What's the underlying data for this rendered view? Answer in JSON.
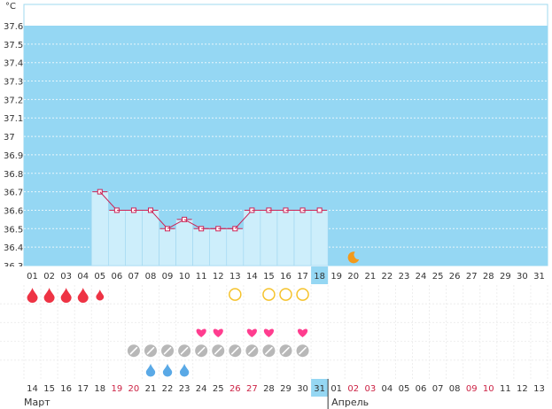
{
  "chart_data": {
    "type": "line",
    "ylabel": "°C",
    "ylim": [
      36.3,
      37.6
    ],
    "yticks": [
      "37.6",
      "37.5",
      "37.4",
      "37.3",
      "37.2",
      "37.1",
      "37",
      "36.9",
      "36.8",
      "36.7",
      "36.6",
      "36.5",
      "36.4",
      "36.3"
    ],
    "cycle_days": [
      "01",
      "02",
      "03",
      "04",
      "05",
      "06",
      "07",
      "08",
      "09",
      "10",
      "11",
      "12",
      "13",
      "14",
      "15",
      "16",
      "17",
      "18",
      "19",
      "20",
      "21",
      "22",
      "23",
      "24",
      "25",
      "26",
      "27",
      "28",
      "29",
      "30",
      "31"
    ],
    "current_day_index": 17,
    "temperature": [
      null,
      null,
      null,
      null,
      36.7,
      36.6,
      36.6,
      36.6,
      36.5,
      36.55,
      36.5,
      36.5,
      36.5,
      36.6,
      36.6,
      36.6,
      36.6,
      36.6,
      null,
      null,
      null,
      null,
      null,
      null,
      null,
      null,
      null,
      null,
      null,
      null,
      null
    ],
    "dates": [
      "14",
      "15",
      "16",
      "17",
      "18",
      "19",
      "20",
      "21",
      "22",
      "23",
      "24",
      "25",
      "26",
      "27",
      "28",
      "29",
      "30",
      "31",
      "01",
      "02",
      "03",
      "04",
      "05",
      "06",
      "07",
      "08",
      "09",
      "10",
      "11",
      "12",
      "13"
    ],
    "weekend_dates": [
      5,
      6,
      12,
      13,
      19,
      20,
      26,
      27
    ],
    "today_date_index": 17,
    "months": [
      {
        "label": "Март",
        "start": 0
      },
      {
        "label": "Апрель",
        "start": 18
      }
    ],
    "markers": {
      "menstruation_days": [
        0,
        1,
        2,
        3,
        4
      ],
      "menstruation_small_days": [
        4
      ],
      "circle_days": [
        12,
        14,
        15,
        16
      ],
      "heart_days": [
        10,
        11,
        13,
        14,
        16
      ],
      "pill_days": [
        6,
        7,
        8,
        9,
        10,
        11,
        12,
        13,
        14,
        15,
        16
      ],
      "drop_days": [
        7,
        8,
        9
      ],
      "moon_day": 19
    },
    "colors": {
      "background": "#95d7f3",
      "bar": "#cdeefb",
      "line": "#cc2255",
      "today": "#95d7f3",
      "drop_red": "#ee3344",
      "heart": "#ff3d8f",
      "circle": "#f5c22a",
      "pill": "#b8b8b8",
      "water": "#5aa9e6",
      "moon": "#f39a1a"
    }
  }
}
